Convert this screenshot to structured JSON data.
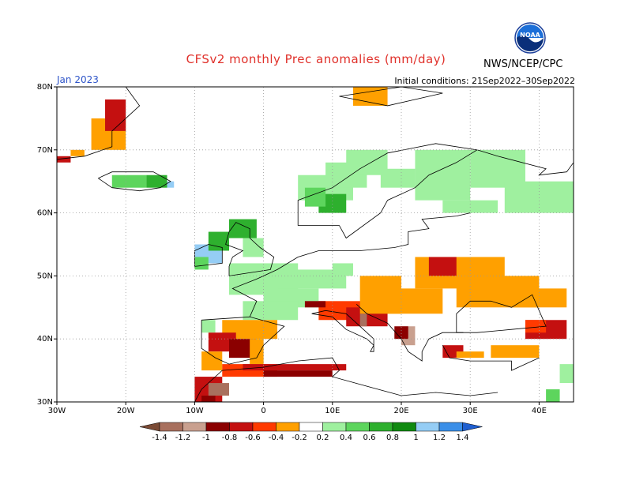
{
  "header": {
    "title": "CFSv2 monthly Prec anomalies (mm/day)",
    "month": "Jan 2023",
    "initial_conditions": "Initial conditions: 21Sep2022–30Sep2022",
    "agency": "NWS/NCEP/CPC",
    "logo_text": "NOAA",
    "title_color": "#e0302a",
    "month_color": "#2f55c8"
  },
  "axes": {
    "lat_labels": [
      "80N",
      "70N",
      "60N",
      "50N",
      "40N",
      "30N"
    ],
    "lon_labels": [
      "30W",
      "20W",
      "10W",
      "0",
      "10E",
      "20E",
      "30E",
      "40E"
    ]
  },
  "legend": {
    "labels": [
      "-1.4",
      "-1.2",
      "-1",
      "-0.8",
      "-0.6",
      "-0.4",
      "-0.2",
      "0.2",
      "0.4",
      "0.6",
      "0.8",
      "1",
      "1.2",
      "1.4"
    ],
    "colors": [
      "#7a4a35",
      "#a8705e",
      "#c9a08f",
      "#8b0000",
      "#c41010",
      "#ff3a00",
      "#ffa000",
      "#ffffff",
      "#9ff09f",
      "#5dd55d",
      "#2eb02e",
      "#108a10",
      "#95cdf5",
      "#3b8fe8",
      "#1f5fd0"
    ]
  }
}
